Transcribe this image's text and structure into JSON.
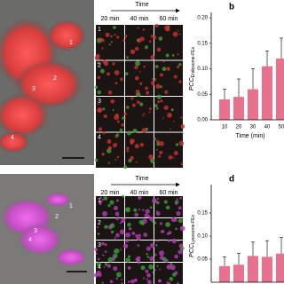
{
  "top_images": {
    "region_labels": [
      "1",
      "2",
      "3",
      "4"
    ],
    "time_title": "Time",
    "columns": [
      "20 min",
      "40 min",
      "60 min"
    ],
    "row_labels": [
      "1",
      "2",
      "3",
      "4"
    ]
  },
  "bottom_images": {
    "region_labels": [
      "1",
      "2",
      "3",
      "4"
    ],
    "time_title": "Time",
    "columns": [
      "20 min",
      "40 min",
      "60 min"
    ],
    "row_labels": [
      "1",
      "2",
      "3",
      "4"
    ]
  },
  "chart_data": [
    {
      "type": "bar",
      "panel_label": "b",
      "y_label": "PCC",
      "y_label_sub": "Endosome-FEx",
      "x_label": "Time (min)",
      "categories": [
        "10",
        "20",
        "30",
        "40",
        "50"
      ],
      "values": [
        0.04,
        0.045,
        0.06,
        0.105,
        0.12
      ],
      "errors": [
        0.02,
        0.035,
        0.04,
        0.03,
        0.04
      ],
      "color": "#e8718d",
      "ylim": [
        0,
        0.2
      ],
      "yticks": [
        {
          "value": 0,
          "label": "0.00"
        },
        {
          "value": 0.05,
          "label": "0.05"
        },
        {
          "value": 0.1,
          "label": "0.10"
        },
        {
          "value": 0.15,
          "label": "0.15"
        },
        {
          "value": 0.2,
          "label": "0.20"
        }
      ]
    },
    {
      "type": "bar",
      "panel_label": "d",
      "y_label": "PCC",
      "y_label_sub": "Lysosome-FEx",
      "categories": [
        null,
        null,
        null,
        null,
        null
      ],
      "values": [
        0.035,
        0.038,
        0.057,
        0.055,
        0.062
      ],
      "errors": [
        0.02,
        0.025,
        0.03,
        0.035,
        0.035
      ],
      "color": "#e8718d",
      "ylim": [
        0,
        0.2
      ],
      "yticks": [
        {
          "value": 0.05,
          "label": "0.05"
        },
        {
          "value": 0.1,
          "label": "0.10"
        },
        {
          "value": 0.15,
          "label": "0.15"
        }
      ]
    }
  ]
}
